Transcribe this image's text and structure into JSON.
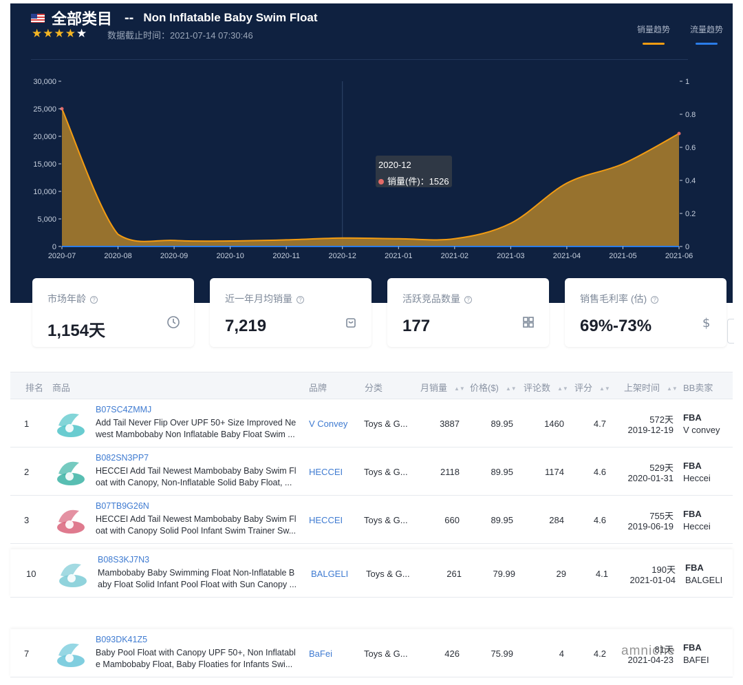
{
  "header": {
    "category": "全部类目",
    "separator": "--",
    "product": "Non Inflatable Baby Swim Float",
    "stars_on": "★★★★",
    "stars_off": "★",
    "as_of": "数据截止时间：2021-07-14 07:30:46",
    "legend_sales": "销量趋势",
    "legend_traffic": "流量趋势",
    "color_sales": "#f39c12",
    "color_traffic": "#2b7de9"
  },
  "chart_data": {
    "type": "area",
    "categories": [
      "2020-07",
      "2020-08",
      "2020-09",
      "2020-10",
      "2020-11",
      "2020-12",
      "2021-01",
      "2021-02",
      "2021-03",
      "2021-04",
      "2021-05",
      "2021-06"
    ],
    "series": [
      {
        "name": "销量趋势",
        "values": [
          25000,
          2200,
          1100,
          1000,
          1200,
          1526,
          1400,
          1400,
          4200,
          11500,
          15000,
          20500
        ]
      },
      {
        "name": "流量趋势",
        "values": [
          0,
          0,
          0,
          0,
          0,
          0,
          0,
          0,
          0,
          0,
          0,
          0
        ]
      }
    ],
    "y_left_ticks": [
      "30,000",
      "25,000",
      "20,000",
      "15,000",
      "10,000",
      "5,000",
      "0"
    ],
    "y_right_ticks": [
      "1",
      "0.8",
      "0.6",
      "0.4",
      "0.2",
      "0"
    ],
    "ylim_left": [
      0,
      30000
    ],
    "ylim_right": [
      0,
      1
    ],
    "tooltip": {
      "label": "2020-12",
      "series": "销量(件)：",
      "value": "1526"
    }
  },
  "kpis": [
    {
      "label": "市场年龄",
      "value": "1,154天",
      "icon": "clock-icon"
    },
    {
      "label": "近一年月均销量",
      "value": "7,219",
      "icon": "bag-icon"
    },
    {
      "label": "活跃竞品数量",
      "value": "177",
      "icon": "grid-icon"
    },
    {
      "label": "销售毛利率 (估)",
      "value": "69%-73%",
      "icon": "dollar-icon"
    }
  ],
  "table": {
    "headers": {
      "rank": "排名",
      "product": "商品",
      "brand": "品牌",
      "category": "分类",
      "monthly_sales": "月销量",
      "price": "价格($)",
      "reviews": "评论数",
      "rating": "评分",
      "listed": "上架时间",
      "bb_seller": "BB卖家"
    },
    "rows": [
      {
        "rank": "1",
        "asin": "B07SC4ZMMJ",
        "title1": "Add Tail Never Flip Over UPF 50+ Size Improved Ne",
        "title2": "west Mambobaby Non Inflatable Baby Float Swim ...",
        "brand": "V Convey",
        "category": "Toys & G...",
        "sales": "3887",
        "price": "89.95",
        "reviews": "1460",
        "rating": "4.7",
        "days": "572天",
        "date": "2019-12-19",
        "fba": "FBA",
        "seller": "V convey",
        "color": "#4fc3c8"
      },
      {
        "rank": "2",
        "asin": "B082SN3PP7",
        "title1": "HECCEI Add Tail Newest Mambobaby Baby Swim Fl",
        "title2": "oat with Canopy, Non-Inflatable Solid Baby Float, ...",
        "brand": "HECCEI",
        "category": "Toys & G...",
        "sales": "2118",
        "price": "89.95",
        "reviews": "1174",
        "rating": "4.6",
        "days": "529天",
        "date": "2020-01-31",
        "fba": "FBA",
        "seller": "Heccei",
        "color": "#3bb3a5"
      },
      {
        "rank": "3",
        "asin": "B07TB9G26N",
        "title1": "HECCEI Add Tail Newest Mambobaby Baby Swim Fl",
        "title2": "oat with Canopy Solid Pool Infant Swim Trainer Sw...",
        "brand": "HECCEI",
        "category": "Toys & G...",
        "sales": "660",
        "price": "89.95",
        "reviews": "284",
        "rating": "4.6",
        "days": "755天",
        "date": "2019-06-19",
        "fba": "FBA",
        "seller": "Heccei",
        "color": "#d9637a"
      },
      {
        "rank": "10",
        "asin": "B08S3KJ7N3",
        "title1": "Mambobaby Baby Swimming Float Non-Inflatable B",
        "title2": "aby Float Solid Infant Pool Float with Sun Canopy ...",
        "brand": "BALGELI",
        "category": "Toys & G...",
        "sales": "261",
        "price": "79.99",
        "reviews": "29",
        "rating": "4.1",
        "days": "190天",
        "date": "2021-01-04",
        "fba": "FBA",
        "seller": "BALGELI",
        "color": "#7ccbd6"
      },
      {
        "rank": "7",
        "asin": "B093DK41Z5",
        "title1": "Baby Pool Float with Canopy UPF 50+, Non Inflatabl",
        "title2": "e Mambobaby Float, Baby Floaties for Infants Swi...",
        "brand": "BaFei",
        "category": "Toys & G...",
        "sales": "426",
        "price": "75.99",
        "reviews": "4",
        "rating": "4.2",
        "days": "81天",
        "date": "2021-04-23",
        "fba": "FBA",
        "seller": "BAFEI",
        "color": "#6ac6d9"
      }
    ]
  },
  "watermark": "amniche"
}
